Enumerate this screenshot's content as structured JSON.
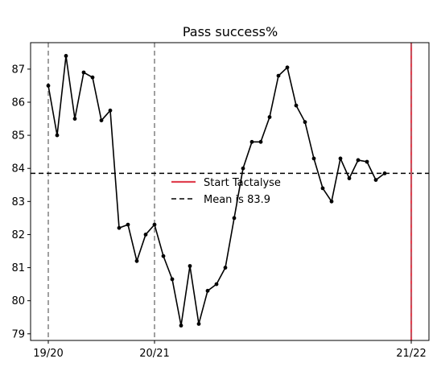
{
  "chart_data": {
    "type": "line",
    "title": "Pass success%",
    "xlabel": "",
    "ylabel": "",
    "xlim": [
      -2,
      43
    ],
    "ylim": [
      78.8,
      87.8
    ],
    "y_ticks": [
      79,
      80,
      81,
      82,
      83,
      84,
      85,
      86,
      87
    ],
    "x_ticks": [
      {
        "x": 0,
        "label": "19/20"
      },
      {
        "x": 12,
        "label": "20/21"
      },
      {
        "x": 41,
        "label": "21/22"
      }
    ],
    "season_lines_x": [
      0,
      12
    ],
    "series": [
      {
        "x": [
          0,
          1,
          2,
          3,
          4,
          5,
          6,
          7,
          8,
          9,
          10,
          11,
          12,
          13,
          14,
          15,
          16,
          17,
          18,
          19,
          20,
          21,
          22,
          23,
          24,
          25,
          26,
          27,
          28,
          29,
          30,
          31,
          32,
          33,
          34,
          35,
          36,
          37,
          38
        ],
        "values": [
          86.5,
          85.0,
          87.4,
          85.5,
          86.9,
          86.75,
          85.45,
          85.75,
          82.2,
          82.3,
          81.2,
          82.0,
          82.3,
          81.35,
          80.65,
          79.25,
          81.05,
          79.3,
          80.3,
          80.5,
          81.0,
          82.5,
          84.0,
          84.8,
          84.8,
          85.55,
          86.8,
          87.05,
          85.9,
          85.4,
          84.3,
          83.4,
          83.0,
          84.3,
          83.7,
          84.25,
          84.2,
          83.65,
          83.85
        ],
        "color": "#000000"
      }
    ],
    "mean": {
      "value": 83.85,
      "label": "Mean is 83.9",
      "color": "#000000"
    },
    "start_marker": {
      "x": 41,
      "label": "Start Tactalyse",
      "color": "#e04050"
    },
    "grid": false,
    "legend_position": "center"
  }
}
